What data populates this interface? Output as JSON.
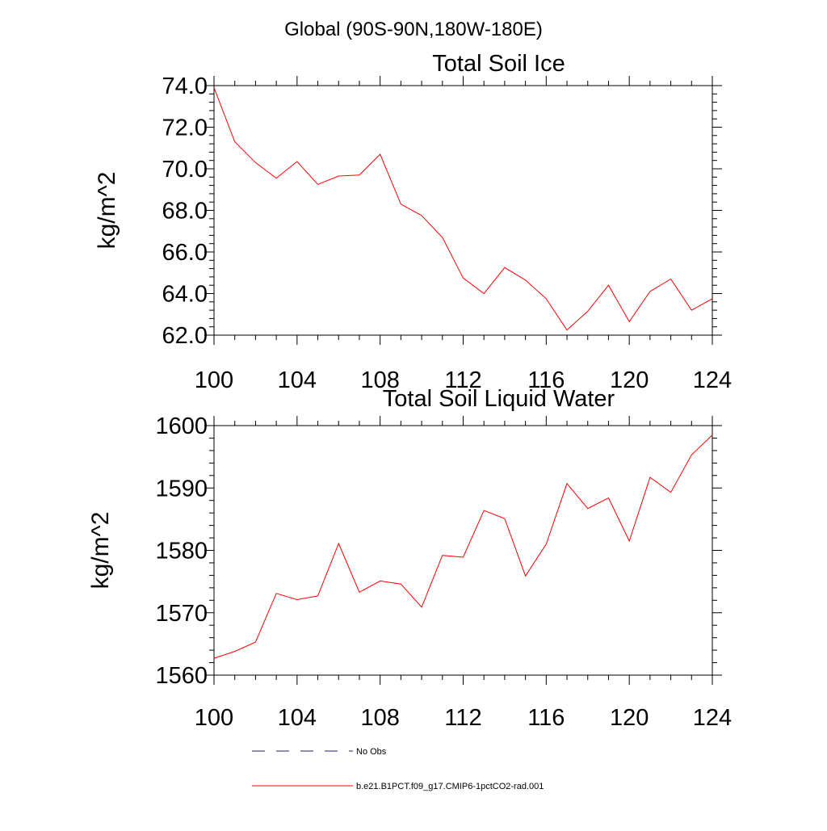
{
  "page_title": "Global (90S-90N,180W-180E)",
  "legend": {
    "entries": [
      {
        "label": "No Obs",
        "color": "#1f1f6e",
        "dash": true
      },
      {
        "label": "b.e21.B1PCT.f09_g17.CMIP6-1pctCO2-rad.001",
        "color": "#ff0000",
        "dash": false
      }
    ]
  },
  "chart_data": [
    {
      "type": "line",
      "title": "Total Soil Ice",
      "xlabel": "",
      "ylabel": "kg/m^2",
      "xlim": [
        100,
        124
      ],
      "ylim": [
        62,
        74
      ],
      "x_ticks": [
        100,
        104,
        108,
        112,
        116,
        120,
        124
      ],
      "y_ticks": [
        62,
        64,
        66,
        68,
        70,
        72,
        74
      ],
      "y_tick_labels": [
        "62.0",
        "64.0",
        "66.0",
        "68.0",
        "70.0",
        "72.0",
        "74.0"
      ],
      "grid": false,
      "series": [
        {
          "color": "#ff0000",
          "x": [
            100,
            101,
            102,
            103,
            104,
            105,
            106,
            107,
            108,
            109,
            110,
            111,
            112,
            113,
            114,
            115,
            116,
            117,
            118,
            119,
            120,
            121,
            122,
            123,
            124
          ],
          "values": [
            73.9,
            71.3,
            70.3,
            69.55,
            70.35,
            69.25,
            69.65,
            69.7,
            70.7,
            68.3,
            67.75,
            66.7,
            64.75,
            64.0,
            65.25,
            64.65,
            63.75,
            62.25,
            63.15,
            64.4,
            62.65,
            64.1,
            64.7,
            63.2,
            63.75
          ]
        }
      ]
    },
    {
      "type": "line",
      "title": "Total Soil Liquid Water",
      "xlabel": "",
      "ylabel": "kg/m^2",
      "xlim": [
        100,
        124
      ],
      "ylim": [
        1560,
        1600
      ],
      "x_ticks": [
        100,
        104,
        108,
        112,
        116,
        120,
        124
      ],
      "y_ticks": [
        1560,
        1570,
        1580,
        1590,
        1600
      ],
      "y_tick_labels": [
        "1560",
        "1570",
        "1580",
        "1590",
        "1600"
      ],
      "grid": false,
      "series": [
        {
          "color": "#ff0000",
          "x": [
            100,
            101,
            102,
            103,
            104,
            105,
            106,
            107,
            108,
            109,
            110,
            111,
            112,
            113,
            114,
            115,
            116,
            117,
            118,
            119,
            120,
            121,
            122,
            123,
            124
          ],
          "values": [
            1562.7,
            1563.8,
            1565.3,
            1573.1,
            1572.1,
            1572.7,
            1581.1,
            1573.3,
            1575.1,
            1574.6,
            1570.9,
            1579.2,
            1578.9,
            1586.4,
            1585.1,
            1575.9,
            1581.0,
            1590.7,
            1586.7,
            1588.4,
            1581.5,
            1591.7,
            1589.3,
            1595.3,
            1598.5
          ]
        }
      ]
    }
  ]
}
